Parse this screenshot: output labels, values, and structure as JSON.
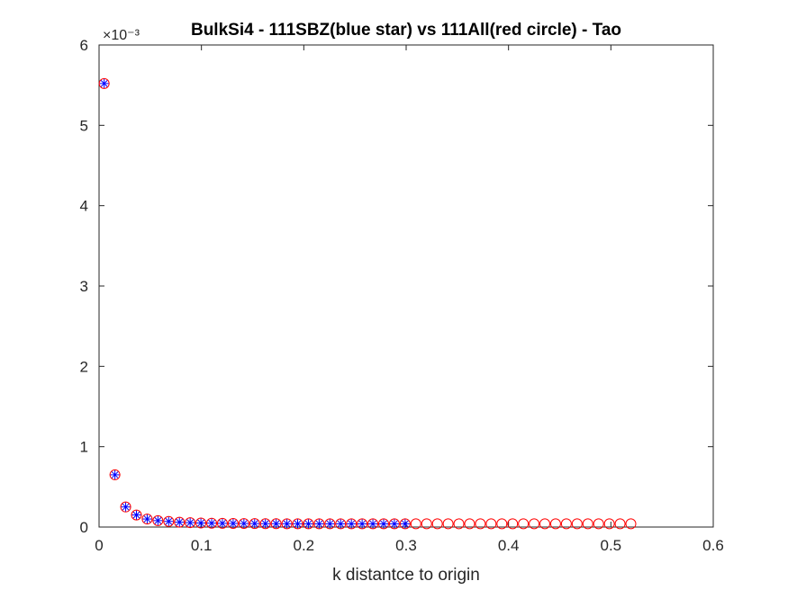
{
  "chart_data": {
    "type": "scatter",
    "title": "BulkSi4 - 111SBZ(blue star) vs 111All(red circle) - Tao",
    "xlabel": "k distantce to origin",
    "ylabel": "",
    "y_exponent_label": "×10⁻³",
    "xlim": [
      0,
      0.6
    ],
    "ylim": [
      0,
      6
    ],
    "xticks": [
      "0",
      "0.1",
      "0.2",
      "0.3",
      "0.4",
      "0.5",
      "0.6"
    ],
    "yticks": [
      "0",
      "1",
      "2",
      "3",
      "4",
      "5",
      "6"
    ],
    "grid": false,
    "series": [
      {
        "marker": "circle",
        "color": "#ff0000",
        "x": [
          0.005,
          0.0155,
          0.026,
          0.0365,
          0.047,
          0.0575,
          0.068,
          0.0785,
          0.089,
          0.0995,
          0.11,
          0.1205,
          0.131,
          0.1415,
          0.152,
          0.1625,
          0.173,
          0.1835,
          0.194,
          0.2045,
          0.215,
          0.2255,
          0.236,
          0.2465,
          0.257,
          0.2675,
          0.278,
          0.2885,
          0.299,
          0.3095,
          0.32,
          0.3305,
          0.341,
          0.3515,
          0.362,
          0.3725,
          0.383,
          0.3935,
          0.404,
          0.4145,
          0.425,
          0.4355,
          0.446,
          0.4565,
          0.467,
          0.4775,
          0.488,
          0.4985,
          0.509,
          0.5195
        ],
        "y": [
          5.52,
          0.65,
          0.25,
          0.15,
          0.1,
          0.08,
          0.07,
          0.06,
          0.055,
          0.05,
          0.048,
          0.046,
          0.045,
          0.044,
          0.043,
          0.042,
          0.042,
          0.041,
          0.041,
          0.04,
          0.04,
          0.04,
          0.04,
          0.04,
          0.04,
          0.04,
          0.04,
          0.04,
          0.04,
          0.04,
          0.04,
          0.04,
          0.04,
          0.04,
          0.04,
          0.04,
          0.04,
          0.04,
          0.04,
          0.04,
          0.04,
          0.04,
          0.04,
          0.04,
          0.04,
          0.04,
          0.04,
          0.04,
          0.04,
          0.04
        ]
      },
      {
        "marker": "star",
        "color": "#0000ff",
        "x": [
          0.005,
          0.0155,
          0.026,
          0.0365,
          0.047,
          0.0575,
          0.068,
          0.0785,
          0.089,
          0.0995,
          0.11,
          0.1205,
          0.131,
          0.1415,
          0.152,
          0.1625,
          0.173,
          0.1835,
          0.194,
          0.2045,
          0.215,
          0.2255,
          0.236,
          0.2465,
          0.257,
          0.2675,
          0.278,
          0.2885,
          0.299
        ],
        "y": [
          5.52,
          0.65,
          0.25,
          0.15,
          0.1,
          0.08,
          0.07,
          0.06,
          0.055,
          0.05,
          0.048,
          0.046,
          0.045,
          0.044,
          0.043,
          0.042,
          0.042,
          0.041,
          0.041,
          0.04,
          0.04,
          0.04,
          0.04,
          0.04,
          0.04,
          0.04,
          0.04,
          0.04,
          0.04
        ]
      }
    ]
  }
}
